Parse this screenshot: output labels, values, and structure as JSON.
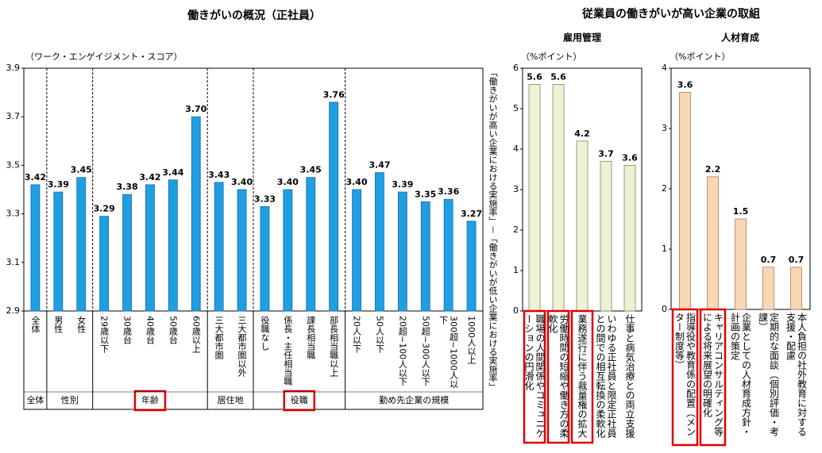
{
  "chart_data": [
    {
      "type": "bar",
      "title": "働きがいの概況（正社員）",
      "ylabel": "（ワーク・エンゲイジメント・スコア）",
      "categories": [
        "全体",
        "男性",
        "女性",
        "29歳以下",
        "30歳台",
        "40歳台",
        "50歳台",
        "60歳以上",
        "三大都市圏",
        "三大都市圏以外",
        "役職なし",
        "係長・主任相当職",
        "課長相当職",
        "部長相当職以上",
        "20人以下",
        "50人以下",
        "20超~100人以下",
        "50超~300人以下",
        "300超~1000人以下",
        "1000人以上"
      ],
      "values": [
        3.42,
        3.39,
        3.45,
        3.29,
        3.38,
        3.42,
        3.44,
        3.7,
        3.43,
        3.4,
        3.33,
        3.4,
        3.45,
        3.76,
        3.4,
        3.47,
        3.39,
        3.35,
        3.36,
        3.27
      ],
      "value_labels": [
        "3.42",
        "3.39",
        "3.45",
        "3.29",
        "3.38",
        "3.42",
        "3.44",
        "3.70",
        "3.43",
        "3.40",
        "3.33",
        "3.40",
        "3.45",
        "3.76",
        "3.40",
        "3.47",
        "3.39",
        "3.35",
        "3.36",
        "3.27"
      ],
      "groups": [
        {
          "label": "全体",
          "highlight": false
        },
        {
          "label": "性別",
          "highlight": false
        },
        {
          "label": "年齢",
          "highlight": true
        },
        {
          "label": "居住地",
          "highlight": false
        },
        {
          "label": "役職",
          "highlight": true
        },
        {
          "label": "勤め先企業の規模",
          "highlight": false
        }
      ],
      "color": "#1f9fe3",
      "ylim": [
        2.9,
        3.9
      ],
      "yticks": [
        2.9,
        3.1,
        3.3,
        3.5,
        3.7,
        3.9
      ]
    },
    {
      "type": "bar",
      "subtitle": "雇用管理",
      "ylabel": "（%ポイント）",
      "categories": [
        "職場の人間関係やコミュニケーションの円滑化",
        "労働時間の短縮や働き方の柔軟化",
        "業務遂行に伴う裁量権の拡大",
        "いわゆる正社員と限定正社員との間での相互転換の柔軟化",
        "仕事と病気治療との両立支援"
      ],
      "values": [
        5.6,
        5.6,
        4.2,
        3.7,
        3.6
      ],
      "highlight": [
        true,
        true,
        true,
        false,
        false
      ],
      "color": "#eef1d6",
      "ylim": [
        0,
        6
      ],
      "yticks": [
        0,
        1,
        2,
        3,
        4,
        5,
        6
      ]
    },
    {
      "type": "bar",
      "subtitle": "人材育成",
      "ylabel": "（%ポイント）",
      "categories": [
        "指導役や教育係の配置（メンター制度等）",
        "キャリアコンサルティング等による将来展望の明確化",
        "企業としての人材育成方針・計画の策定",
        "定期的な面談（個別評価・考課）",
        "本人負担の社外教育に対する支援・配慮"
      ],
      "values": [
        3.6,
        2.2,
        1.5,
        0.7,
        0.7
      ],
      "highlight": [
        true,
        true,
        false,
        false,
        false
      ],
      "color": "#f8d7b5",
      "ylim": [
        0,
        4
      ],
      "yticks": [
        0,
        1,
        2,
        3,
        4
      ]
    }
  ],
  "right_panel": {
    "title": "従業員の働きがいが高い企業の取組",
    "axis_label": "「働きがいが高い企業における実施率」－「働きがいが低い企業における実施率」"
  }
}
